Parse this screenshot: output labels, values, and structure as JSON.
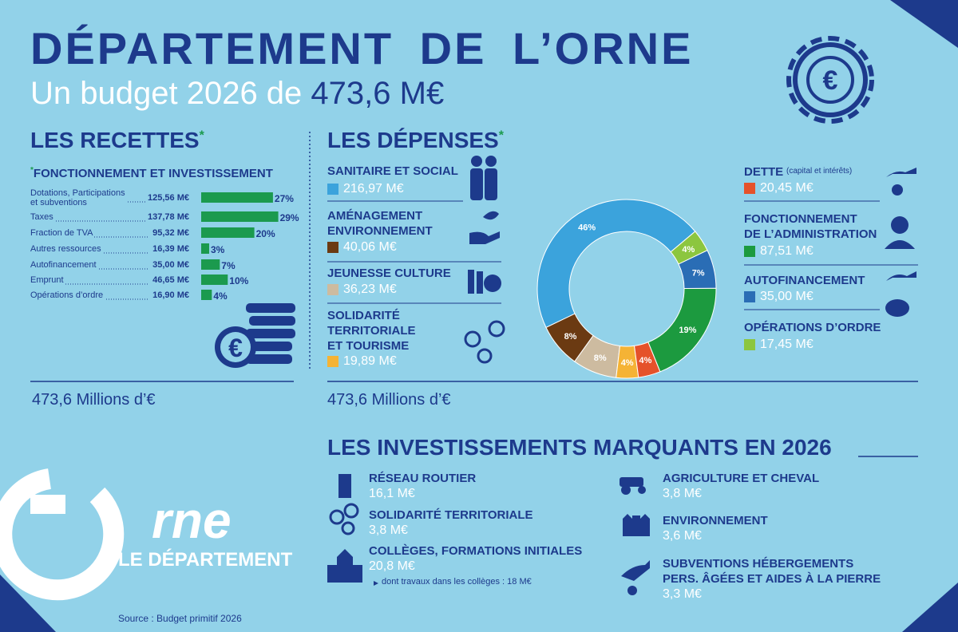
{
  "header": {
    "title": "DÉPARTEMENT DE L’ORNE",
    "subtitle": "Un budget 2026 de",
    "amount": "473,6 M€"
  },
  "recettes": {
    "title": "LES RECETTES",
    "asterisk": "*",
    "note_asterisk": "*",
    "subtitle": "FONCTIONNEMENT ET INVESTISSEMENT",
    "total": "473,6 Millions d’€"
  },
  "depenses": {
    "title": "LES DÉPENSES",
    "asterisk": "*",
    "dette_note": "(capital et intérêts)",
    "total": "473,6 Millions d’€"
  },
  "chart_data": [
    {
      "type": "bar",
      "orientation": "horizontal",
      "color": "#1b9a4e",
      "categories": [
        "Dotations, Participations\net subventions",
        "Taxes",
        "Fraction de TVA",
        "Autres ressources",
        "Autofinancement",
        "Emprunt",
        "Opérations d’ordre"
      ],
      "amounts": [
        "125,56 M€",
        "137,78 M€",
        "95,32 M€",
        "16,39 M€",
        "35,00 M€",
        "46,65 M€",
        "16,90 M€"
      ],
      "values": [
        27,
        29,
        20,
        3,
        7,
        10,
        4
      ],
      "value_labels": [
        "27%",
        "29%",
        "20%",
        "3%",
        "7%",
        "10%",
        "4%"
      ]
    },
    {
      "type": "pie",
      "donut": true,
      "categories": [
        "SANITAIRE ET SOCIAL",
        "AMÉNAGEMENT\nENVIRONNEMENT",
        "JEUNESSE CULTURE",
        "SOLIDARITÉ\nTERRITORIALE\nET TOURISME",
        "DETTE",
        "FONCTIONNEMENT\nDE L’ADMINISTRATION",
        "AUTOFINANCEMENT",
        "OPÉRATIONS D’ORDRE"
      ],
      "amounts": [
        "216,97 M€",
        "40,06 M€",
        "36,23 M€",
        "19,89 M€",
        "20,45 M€",
        "87,51 M€",
        "35,00 M€",
        "17,45 M€"
      ],
      "values": [
        46,
        8,
        8,
        4,
        4,
        19,
        7,
        4
      ],
      "value_labels": [
        "46%",
        "8%",
        "8%",
        "4%",
        "4%",
        "19%",
        "7%",
        "4%"
      ],
      "colors": [
        "#3ba3dc",
        "#6b3a12",
        "#cdbba0",
        "#f5b335",
        "#e5522a",
        "#1c9a3f",
        "#2a6db5",
        "#8cc63f"
      ]
    }
  ],
  "investissements": {
    "title": "LES INVESTISSEMENTS MARQUANTS EN 2026",
    "items": [
      {
        "label": "RÉSEAU ROUTIER",
        "amount": "16,1 M€"
      },
      {
        "label": "SOLIDARITÉ TERRITORIALE",
        "amount": "3,8 M€"
      },
      {
        "label": "COLLÈGES, FORMATIONS INITIALES",
        "amount": "20,8 M€",
        "note": "dont travaux dans les collèges : 18 M€"
      },
      {
        "label": "AGRICULTURE ET CHEVAL",
        "amount": "3,8 M€"
      },
      {
        "label": "ENVIRONNEMENT",
        "amount": "3,6 M€"
      },
      {
        "label": "SUBVENTIONS HÉBERGEMENTS\nPERS. ÂGÉES ET AIDES À LA PIERRE",
        "amount": "3,3 M€"
      }
    ]
  },
  "logo": {
    "name": "rne",
    "subtitle": "LE DÉPARTEMENT"
  },
  "source": "Source : Budget primitif 2026"
}
